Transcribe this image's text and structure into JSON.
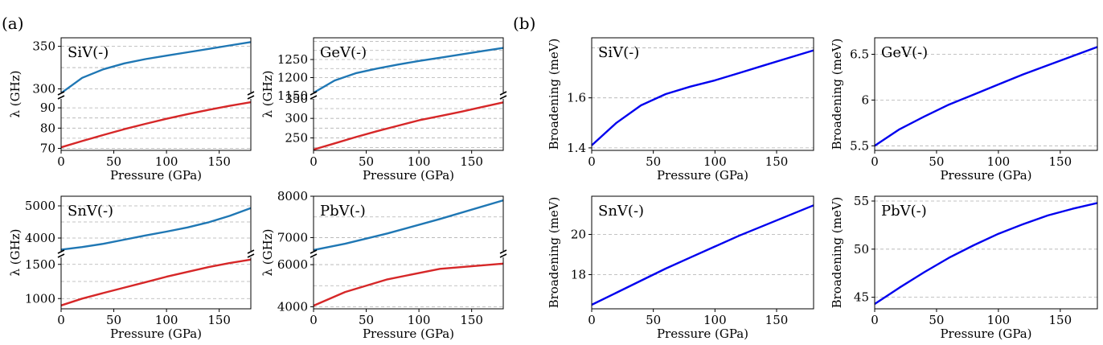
{
  "panel_labels": {
    "a": "(a)",
    "b": "(b)"
  },
  "colors": {
    "upper": "#1f77b4",
    "lower": "#d62728",
    "broadening": "#0000ee"
  },
  "chart_data": [
    {
      "id": "siv_lambda",
      "type": "line",
      "panel": "a",
      "label": "SiV(-)",
      "xlabel": "Pressure (GPa)",
      "ylabel": "λ (GHz)",
      "xlim": [
        0,
        180
      ],
      "xticks": [
        0,
        50,
        100,
        150
      ],
      "broken_axis": true,
      "upper": {
        "ylim": [
          292,
          360
        ],
        "yticks": [
          300,
          350
        ],
        "grid": [
          300,
          325,
          350
        ],
        "color": "#1f77b4",
        "x": [
          0,
          20,
          40,
          60,
          80,
          100,
          120,
          140,
          160,
          180
        ],
        "y": [
          295,
          313,
          323,
          330,
          335,
          339,
          343,
          347,
          351,
          355
        ]
      },
      "lower": {
        "ylim": [
          69,
          96
        ],
        "yticks": [
          70,
          80,
          90
        ],
        "grid": [
          70,
          75,
          80,
          85,
          90
        ],
        "color": "#d62728",
        "x": [
          0,
          20,
          40,
          60,
          80,
          100,
          120,
          140,
          160,
          180
        ],
        "y": [
          70.5,
          73.6,
          76.6,
          79.5,
          82.1,
          84.6,
          86.9,
          89.0,
          91.0,
          92.8
        ]
      }
    },
    {
      "id": "gev_lambda",
      "type": "line",
      "panel": "a",
      "label": "GeV(-)",
      "xlabel": "Pressure (GPa)",
      "ylabel": "λ (GHz)",
      "xlim": [
        0,
        180
      ],
      "xticks": [
        0,
        50,
        100,
        150
      ],
      "broken_axis": true,
      "upper": {
        "ylim": [
          1150,
          1310
        ],
        "yticks": [
          1150,
          1200,
          1250
        ],
        "grid": [
          1175,
          1200,
          1225,
          1250,
          1275,
          1300
        ],
        "color": "#1f77b4",
        "x": [
          0,
          20,
          40,
          60,
          80,
          100,
          120,
          140,
          160,
          180
        ],
        "y": [
          1158,
          1192,
          1212,
          1225,
          1236,
          1246,
          1255,
          1264,
          1273,
          1282
        ]
      },
      "lower": {
        "ylim": [
          218,
          358
        ],
        "yticks": [
          250,
          300,
          350
        ],
        "grid": [
          225,
          250,
          275,
          300,
          325,
          350
        ],
        "color": "#d62728",
        "x": [
          0,
          20,
          40,
          60,
          80,
          100,
          120,
          140,
          160,
          180
        ],
        "y": [
          220,
          236,
          252,
          267,
          281,
          295,
          306,
          317,
          329,
          341
        ]
      }
    },
    {
      "id": "snv_lambda",
      "type": "line",
      "panel": "a",
      "label": "SnV(-)",
      "xlabel": "Pressure (GPa)",
      "ylabel": "λ (GHz)",
      "xlim": [
        0,
        180
      ],
      "xticks": [
        0,
        50,
        100,
        150
      ],
      "broken_axis": true,
      "upper": {
        "ylim": [
          3500,
          5300
        ],
        "yticks": [
          4000,
          5000
        ],
        "grid": [
          4000,
          4500,
          5000
        ],
        "color": "#1f77b4",
        "x": [
          0,
          20,
          40,
          60,
          80,
          100,
          120,
          140,
          160,
          180
        ],
        "y": [
          3640,
          3720,
          3820,
          3950,
          4080,
          4200,
          4330,
          4490,
          4690,
          4930
        ]
      },
      "lower": {
        "ylim": [
          850,
          1650
        ],
        "yticks": [
          1000,
          1500
        ],
        "grid": [
          1000,
          1250,
          1500
        ],
        "color": "#d62728",
        "x": [
          0,
          20,
          40,
          60,
          80,
          100,
          120,
          140,
          160,
          180
        ],
        "y": [
          900,
          1000,
          1080,
          1160,
          1240,
          1320,
          1390,
          1460,
          1520,
          1570
        ]
      }
    },
    {
      "id": "pbv_lambda",
      "type": "line",
      "panel": "a",
      "label": "PbV(-)",
      "xlabel": "Pressure (GPa)",
      "ylabel": "λ (GHz)",
      "xlim": [
        0,
        180
      ],
      "xticks": [
        0,
        50,
        100,
        150
      ],
      "broken_axis": true,
      "upper": {
        "ylim": [
          6600,
          8000
        ],
        "yticks": [
          7000,
          8000
        ],
        "grid": [
          7000,
          7500,
          8000
        ],
        "color": "#1f77b4",
        "x": [
          0,
          30,
          70,
          120,
          180
        ],
        "y": [
          6700,
          6850,
          7100,
          7450,
          7900
        ]
      },
      "lower": {
        "ylim": [
          3900,
          6500
        ],
        "yticks": [
          4000,
          6000
        ],
        "grid": [
          4000,
          5000,
          6000
        ],
        "color": "#d62728",
        "x": [
          0,
          30,
          70,
          120,
          180
        ],
        "y": [
          4050,
          4700,
          5300,
          5800,
          6050
        ]
      }
    },
    {
      "id": "siv_broadening",
      "type": "line",
      "panel": "b",
      "label": "SiV(-)",
      "xlabel": "Pressure (GPa)",
      "ylabel": "Broadening (meV)",
      "xlim": [
        0,
        180
      ],
      "xticks": [
        0,
        50,
        100,
        150
      ],
      "ylim": [
        1.39,
        1.84
      ],
      "yticks": [
        1.4,
        1.6
      ],
      "grid": [
        1.4,
        1.6,
        1.8
      ],
      "color": "#0000ee",
      "x": [
        0,
        20,
        40,
        60,
        80,
        100,
        120,
        140,
        160,
        180
      ],
      "y": [
        1.41,
        1.5,
        1.57,
        1.615,
        1.645,
        1.67,
        1.7,
        1.73,
        1.76,
        1.79
      ]
    },
    {
      "id": "gev_broadening",
      "type": "line",
      "panel": "b",
      "label": "GeV(-)",
      "xlabel": "Pressure (GPa)",
      "ylabel": "Broadening (meV)",
      "xlim": [
        0,
        180
      ],
      "xticks": [
        0,
        50,
        100,
        150
      ],
      "ylim": [
        5.45,
        6.68
      ],
      "yticks": [
        5.5,
        6.0,
        6.5
      ],
      "grid": [
        5.5,
        6.0,
        6.5
      ],
      "color": "#0000ee",
      "x": [
        0,
        20,
        40,
        60,
        80,
        100,
        120,
        140,
        160,
        180
      ],
      "y": [
        5.5,
        5.68,
        5.82,
        5.95,
        6.06,
        6.17,
        6.28,
        6.38,
        6.48,
        6.58
      ]
    },
    {
      "id": "snv_broadening",
      "type": "line",
      "panel": "b",
      "label": "SnV(-)",
      "xlabel": "Pressure (GPa)",
      "ylabel": "Broadening (meV)",
      "xlim": [
        0,
        180
      ],
      "xticks": [
        0,
        50,
        100,
        150
      ],
      "ylim": [
        16.3,
        21.9
      ],
      "yticks": [
        18,
        20
      ],
      "grid": [
        18,
        20
      ],
      "color": "#0000ee",
      "x": [
        0,
        20,
        40,
        60,
        80,
        100,
        120,
        140,
        160,
        180
      ],
      "y": [
        16.5,
        17.1,
        17.7,
        18.3,
        18.85,
        19.4,
        19.95,
        20.45,
        20.95,
        21.45
      ]
    },
    {
      "id": "pbv_broadening",
      "type": "line",
      "panel": "b",
      "label": "PbV(-)",
      "xlabel": "Pressure (GPa)",
      "ylabel": "Broadening (meV)",
      "xlim": [
        0,
        180
      ],
      "xticks": [
        0,
        50,
        100,
        150
      ],
      "ylim": [
        43.8,
        55.5
      ],
      "yticks": [
        45,
        50,
        55
      ],
      "grid": [
        45,
        50,
        55
      ],
      "color": "#0000ee",
      "x": [
        0,
        20,
        40,
        60,
        80,
        100,
        120,
        140,
        160,
        180
      ],
      "y": [
        44.3,
        46.0,
        47.6,
        49.1,
        50.4,
        51.6,
        52.6,
        53.5,
        54.2,
        54.8
      ]
    }
  ]
}
